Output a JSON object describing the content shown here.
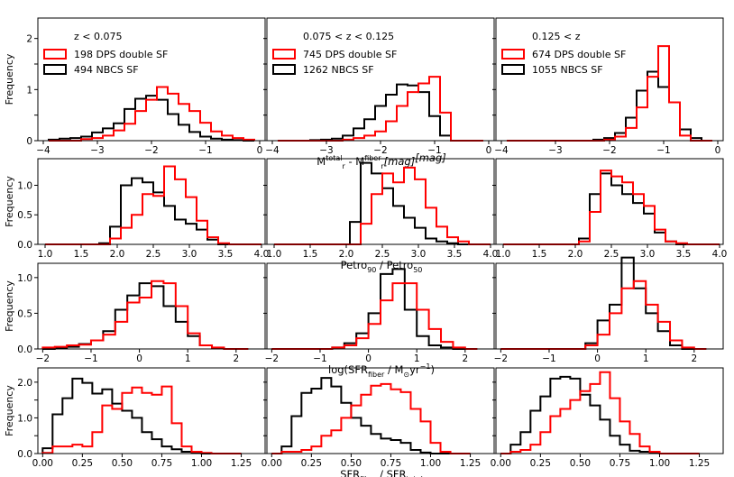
{
  "chart_data": {
    "type": "histogram-grid",
    "ylabel": "Frequency",
    "columns": [
      {
        "legend_title": "z < 0.075",
        "series": [
          {
            "name": "198 DPS double SF",
            "color": "#ff0000"
          },
          {
            "name": "494 NBCS SF",
            "color": "#000000"
          }
        ]
      },
      {
        "legend_title": "0.075 < z < 0.125",
        "series": [
          {
            "name": "745 DPS double SF",
            "color": "#ff0000"
          },
          {
            "name": "1262 NBCS SF",
            "color": "#000000"
          }
        ]
      },
      {
        "legend_title": "0.125 < z",
        "series": [
          {
            "name": "674 DPS double SF",
            "color": "#ff0000"
          },
          {
            "name": "1055 NBCS SF",
            "color": "#000000"
          }
        ]
      }
    ],
    "rows": [
      {
        "xlabel": {
          "main": "M",
          "sub1": "r",
          "sup1": "total",
          "mid": " - M",
          "sub2": "r",
          "sup2": "fiber",
          "tail": "[mag]"
        },
        "xlim": [
          -4.1,
          0.1
        ],
        "ylim": [
          0,
          2.4
        ],
        "xticks": [
          -4,
          -3,
          -2,
          -1,
          0
        ],
        "xticklabels": [
          "−4",
          "−3",
          "−2",
          "−1",
          "0"
        ],
        "yticks": [
          0,
          0.5,
          1,
          1.5,
          2
        ],
        "yticklabels": [
          "0",
          "",
          "1",
          "",
          "2"
        ],
        "x0": -3.9,
        "width": 0.2,
        "panels": [
          {
            "red": [
              0,
              0,
              0,
              0.03,
              0.05,
              0.1,
              0.2,
              0.33,
              0.58,
              0.8,
              1.05,
              0.92,
              0.72,
              0.58,
              0.35,
              0.18,
              0.1,
              0.05,
              0.02
            ],
            "black": [
              0.02,
              0.04,
              0.05,
              0.08,
              0.16,
              0.24,
              0.34,
              0.62,
              0.82,
              0.88,
              0.8,
              0.52,
              0.31,
              0.17,
              0.08,
              0.04,
              0.02,
              0.01,
              0
            ]
          },
          {
            "red": [
              0,
              0,
              0,
              0,
              0,
              0,
              0.02,
              0.05,
              0.1,
              0.18,
              0.38,
              0.68,
              0.95,
              1.12,
              1.25,
              0.55,
              0,
              0,
              0
            ],
            "black": [
              0,
              0,
              0,
              0.01,
              0.02,
              0.04,
              0.1,
              0.24,
              0.42,
              0.68,
              0.9,
              1.1,
              1.08,
              0.95,
              0.48,
              0.1,
              0,
              0,
              0
            ]
          },
          {
            "red": [
              0,
              0,
              0,
              0,
              0,
              0,
              0,
              0,
              0,
              0.02,
              0.08,
              0.25,
              0.65,
              1.25,
              1.85,
              0.75,
              0.1,
              0,
              0
            ],
            "black": [
              0,
              0,
              0,
              0,
              0,
              0,
              0,
              0,
              0.02,
              0.05,
              0.15,
              0.45,
              0.98,
              1.35,
              1.05,
              0.75,
              0.22,
              0.05,
              0
            ]
          }
        ]
      },
      {
        "xlabel": {
          "main": "Petro",
          "sub1": "90",
          "mid": " / Petro",
          "sub2": "50"
        },
        "xlim": [
          0.9,
          4.05
        ],
        "ylim": [
          0,
          1.45
        ],
        "xticks": [
          1,
          1.5,
          2,
          2.5,
          3,
          3.5,
          4
        ],
        "xticklabels": [
          "1.0",
          "1.5",
          "2.0",
          "2.5",
          "3.0",
          "3.5",
          "4.0"
        ],
        "yticks": [
          0,
          0.5,
          1
        ],
        "yticklabels": [
          "0.0",
          "0.5",
          "1.0"
        ],
        "x0": 1.0,
        "width": 0.15,
        "panels": [
          {
            "red": [
              0,
              0,
              0,
              0,
              0,
              0,
              0.1,
              0.28,
              0.5,
              0.85,
              0.82,
              1.32,
              1.1,
              0.8,
              0.4,
              0.12,
              0.02,
              0,
              0,
              0
            ],
            "black": [
              0,
              0,
              0,
              0,
              0,
              0.02,
              0.3,
              1.0,
              1.12,
              1.05,
              0.88,
              0.65,
              0.42,
              0.35,
              0.25,
              0.08,
              0,
              0,
              0,
              0
            ]
          },
          {
            "red": [
              0,
              0,
              0,
              0,
              0,
              0,
              0,
              0,
              0.35,
              0.85,
              1.2,
              1.05,
              1.3,
              1.1,
              0.62,
              0.3,
              0.12,
              0.05,
              0,
              0
            ],
            "black": [
              0,
              0,
              0,
              0,
              0,
              0,
              0,
              0.38,
              1.38,
              1.2,
              0.95,
              0.65,
              0.45,
              0.28,
              0.1,
              0.05,
              0.02,
              0,
              0,
              0
            ]
          },
          {
            "red": [
              0,
              0,
              0,
              0,
              0,
              0,
              0,
              0.05,
              0.55,
              1.25,
              1.15,
              1.05,
              0.85,
              0.65,
              0.25,
              0.05,
              0.02,
              0,
              0,
              0
            ],
            "black": [
              0,
              0,
              0,
              0,
              0,
              0,
              0,
              0.1,
              0.85,
              1.2,
              1.0,
              0.85,
              0.7,
              0.52,
              0.2,
              0.05,
              0,
              0,
              0,
              0
            ]
          }
        ]
      },
      {
        "xlabel": {
          "main": "log(SFR",
          "sub1": "fiber",
          "mid": " / M",
          "sub2": "⊙",
          "tail": "yr",
          "sup2": "−1",
          "end": ")"
        },
        "xlim": [
          -2.1,
          2.6
        ],
        "ylim": [
          0,
          1.2
        ],
        "xticks": [
          -2,
          -1,
          0,
          1,
          2
        ],
        "xticklabels": [
          "−2",
          "−1",
          "0",
          "1",
          "2"
        ],
        "yticks": [
          0,
          0.5,
          1
        ],
        "yticklabels": [
          "0.0",
          "0.5",
          "1.0"
        ],
        "x0": -2.0,
        "width": 0.25,
        "panels": [
          {
            "red": [
              0.02,
              0.03,
              0.05,
              0.06,
              0.12,
              0.2,
              0.38,
              0.65,
              0.72,
              0.95,
              0.92,
              0.6,
              0.22,
              0.05,
              0.02,
              0,
              0
            ],
            "black": [
              0,
              0.01,
              0.03,
              0.07,
              0.12,
              0.25,
              0.55,
              0.75,
              0.92,
              0.88,
              0.6,
              0.38,
              0.18,
              0.05,
              0.01,
              0,
              0
            ]
          },
          {
            "red": [
              0,
              0,
              0,
              0,
              0,
              0.02,
              0.05,
              0.15,
              0.35,
              0.68,
              0.92,
              0.92,
              0.55,
              0.28,
              0.1,
              0.02,
              0
            ],
            "black": [
              0,
              0,
              0,
              0,
              0,
              0.02,
              0.08,
              0.22,
              0.5,
              1.05,
              1.12,
              0.55,
              0.18,
              0.05,
              0.02,
              0,
              0
            ]
          },
          {
            "red": [
              0,
              0,
              0,
              0,
              0,
              0,
              0,
              0.05,
              0.2,
              0.5,
              0.85,
              0.95,
              0.62,
              0.38,
              0.12,
              0.02,
              0
            ],
            "black": [
              0,
              0,
              0,
              0,
              0,
              0,
              0,
              0.08,
              0.4,
              0.62,
              1.28,
              0.85,
              0.5,
              0.25,
              0.05,
              0,
              0
            ]
          }
        ]
      },
      {
        "xlabel": {
          "main": "SFR",
          "sub1": "fiber",
          "mid": " / SFR",
          "sub2": "total"
        },
        "xlim": [
          -0.03,
          1.4
        ],
        "ylim": [
          0,
          2.4
        ],
        "xticks": [
          0,
          0.25,
          0.5,
          0.75,
          1,
          1.25
        ],
        "xticklabels": [
          "0.00",
          "0.25",
          "0.50",
          "0.75",
          "1.00",
          "1.25"
        ],
        "yticks": [
          0,
          0.5,
          1,
          1.5,
          2
        ],
        "yticklabels": [
          "0.0",
          "",
          "1.0",
          "",
          "2.0"
        ],
        "x0": 0.0,
        "width": 0.0625,
        "panels": [
          {
            "red": [
              0.02,
              0.2,
              0.2,
              0.25,
              0.2,
              0.6,
              1.35,
              1.25,
              1.7,
              1.85,
              1.7,
              1.65,
              1.88,
              0.85,
              0.2,
              0.05,
              0.02,
              0,
              0,
              0
            ],
            "black": [
              0.15,
              1.1,
              1.55,
              2.1,
              1.98,
              1.68,
              1.8,
              1.4,
              1.2,
              1.0,
              0.6,
              0.4,
              0.2,
              0.12,
              0.05,
              0.02,
              0,
              0,
              0,
              0
            ]
          },
          {
            "red": [
              0,
              0.05,
              0.05,
              0.1,
              0.2,
              0.5,
              0.65,
              1.0,
              1.35,
              1.65,
              1.9,
              1.95,
              1.8,
              1.72,
              1.25,
              0.9,
              0.3,
              0.05,
              0,
              0
            ],
            "black": [
              0,
              0.2,
              1.05,
              1.7,
              1.82,
              2.12,
              1.88,
              1.42,
              1.0,
              0.78,
              0.55,
              0.42,
              0.38,
              0.3,
              0.1,
              0.03,
              0,
              0,
              0,
              0
            ]
          },
          {
            "red": [
              0,
              0.05,
              0.1,
              0.25,
              0.6,
              1.05,
              1.25,
              1.5,
              1.75,
              1.95,
              2.28,
              1.55,
              0.9,
              0.55,
              0.2,
              0.05,
              0,
              0,
              0,
              0
            ],
            "black": [
              0,
              0.25,
              0.6,
              1.2,
              1.6,
              2.1,
              2.15,
              2.1,
              1.65,
              1.35,
              0.95,
              0.5,
              0.25,
              0.08,
              0.05,
              0.02,
              0,
              0,
              0,
              0
            ]
          }
        ]
      }
    ]
  }
}
